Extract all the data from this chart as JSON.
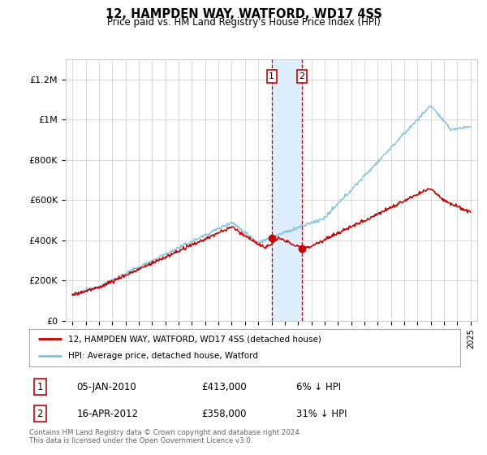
{
  "title": "12, HAMPDEN WAY, WATFORD, WD17 4SS",
  "subtitle": "Price paid vs. HM Land Registry's House Price Index (HPI)",
  "ylabel_ticks": [
    "£0",
    "£200K",
    "£400K",
    "£600K",
    "£800K",
    "£1M",
    "£1.2M"
  ],
  "ytick_values": [
    0,
    200000,
    400000,
    600000,
    800000,
    1000000,
    1200000
  ],
  "ylim": [
    0,
    1300000
  ],
  "sale1_date_x": 2010.02,
  "sale1_price": 413000,
  "sale2_date_x": 2012.3,
  "sale2_price": 358000,
  "hpi_color": "#7bbfdf",
  "price_color": "#cc0000",
  "shade_color": "#ddeeff",
  "legend_line1": "12, HAMPDEN WAY, WATFORD, WD17 4SS (detached house)",
  "legend_line2": "HPI: Average price, detached house, Watford",
  "table_row1": [
    "1",
    "05-JAN-2010",
    "£413,000",
    "6% ↓ HPI"
  ],
  "table_row2": [
    "2",
    "16-APR-2012",
    "£358,000",
    "31% ↓ HPI"
  ],
  "footer": "Contains HM Land Registry data © Crown copyright and database right 2024.\nThis data is licensed under the Open Government Licence v3.0.",
  "background_color": "#ffffff",
  "xlim_left": 1994.5,
  "xlim_right": 2025.5
}
